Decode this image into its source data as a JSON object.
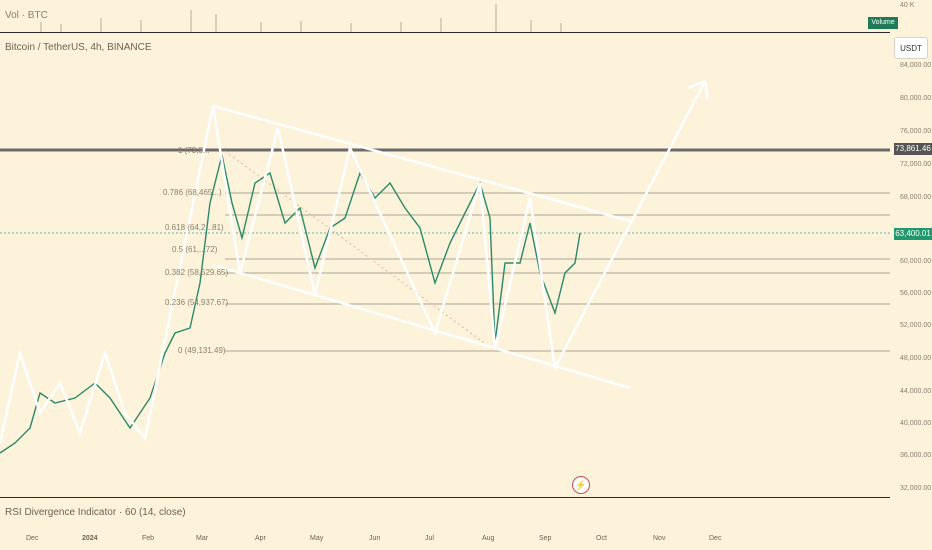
{
  "volume_pane": {
    "label": "Vol · BTC",
    "badge": "Volume",
    "top_tick": "40 K"
  },
  "symbol": {
    "title": "Bitcoin / TetherUS, 4h, BINANCE"
  },
  "currency_button": "USDT",
  "price_axis": [
    "84,000.00",
    "80,000.00",
    "76,000.00",
    "72,000.00",
    "68,000.00",
    "60,000.00",
    "56,000.00",
    "52,000.00",
    "48,000.00",
    "44,000.00",
    "40,000.00",
    "36,000.00",
    "32,000.00"
  ],
  "level_tag": "73,861.46",
  "price_tag": "63,400.01",
  "fib_labels": [
    "1 (73,8...",
    "0.786 (68,465...)",
    "0.618 (64,2...81)",
    "0.5 (61,...72)",
    "0.382 (58,529.65)",
    "0.236 (54,937.67)",
    "0 (49,131.49)"
  ],
  "rsi_pane": {
    "label": "RSI Divergence Indicator · 60 (14, close)"
  },
  "time_axis": [
    "Dec",
    "2024",
    "Feb",
    "Mar",
    "Apr",
    "May",
    "Jun",
    "Jul",
    "Aug",
    "Sep",
    "Oct",
    "Nov",
    "Dec"
  ],
  "colors": {
    "background": "#fdf3da",
    "up": "#26a69a",
    "down": "#ef5350",
    "drawing": "#ffffff",
    "level": "#555555"
  },
  "icons": {
    "replay": "bolt-icon"
  }
}
